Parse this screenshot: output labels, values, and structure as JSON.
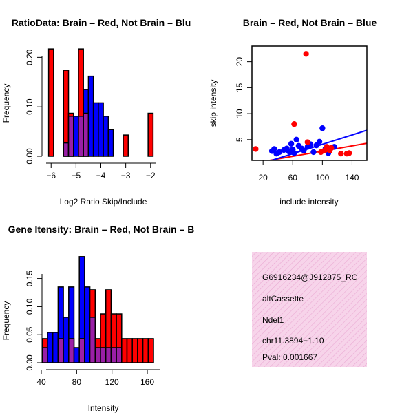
{
  "colors": {
    "red": "#ff0000",
    "blue": "#0000ff",
    "purple": "#9a1fa6",
    "axis": "#000000",
    "info_bg": "#f7d4ea",
    "pval": "#8b0000"
  },
  "chart_data": [
    {
      "id": "ratio",
      "type": "bar",
      "title": "RatioData: Brain – Red, Not Brain – Blu",
      "xlabel": "Log2 Ratio Skip/Include",
      "ylabel": "Frequency",
      "xlim": [
        -6.2,
        -1.8
      ],
      "ylim": [
        0,
        0.22
      ],
      "xticks": [
        -6,
        -5,
        -4,
        -3,
        -2
      ],
      "xtick_labels": [
        "−6",
        "−5",
        "−4",
        "−3",
        "−2"
      ],
      "yticks": [
        0.0,
        0.1,
        0.2
      ],
      "ytick_labels": [
        "0.00",
        "0.10",
        "0.20"
      ],
      "bin_width": 0.2,
      "series": [
        {
          "name": "Brain",
          "color": "red",
          "bins": [
            {
              "x": -6.0,
              "y": 0.217
            },
            {
              "x": -5.4,
              "y": 0.174
            },
            {
              "x": -5.2,
              "y": 0.087
            },
            {
              "x": -4.8,
              "y": 0.217
            },
            {
              "x": -4.6,
              "y": 0.087
            },
            {
              "x": -3.0,
              "y": 0.043
            },
            {
              "x": -2.0,
              "y": 0.087
            }
          ]
        },
        {
          "name": "Not Brain",
          "color": "blue",
          "bins": [
            {
              "x": -5.4,
              "y": 0.027
            },
            {
              "x": -5.2,
              "y": 0.081
            },
            {
              "x": -5.0,
              "y": 0.081
            },
            {
              "x": -4.8,
              "y": 0.081
            },
            {
              "x": -4.6,
              "y": 0.135
            },
            {
              "x": -4.4,
              "y": 0.162
            },
            {
              "x": -4.2,
              "y": 0.108
            },
            {
              "x": -4.0,
              "y": 0.108
            },
            {
              "x": -3.8,
              "y": 0.081
            },
            {
              "x": -3.6,
              "y": 0.054
            }
          ]
        }
      ]
    },
    {
      "id": "scatter",
      "type": "scatter",
      "title": "Brain – Red, Not Brain – Blue",
      "xlabel": "include intensity",
      "ylabel": "skip intensity",
      "xlim": [
        5,
        160
      ],
      "ylim": [
        1,
        23
      ],
      "xticks": [
        20,
        60,
        100,
        140
      ],
      "yticks": [
        5,
        10,
        15,
        20
      ],
      "series": [
        {
          "name": "Brain",
          "color": "red",
          "points": [
            [
              10,
              3.2
            ],
            [
              62,
              8.0
            ],
            [
              78,
              21.5
            ],
            [
              80,
              4.5
            ],
            [
              98,
              2.6
            ],
            [
              103,
              2.9
            ],
            [
              106,
              3.6
            ],
            [
              108,
              3.1
            ],
            [
              110,
              2.9
            ],
            [
              112,
              3.4
            ],
            [
              125,
              2.3
            ],
            [
              133,
              2.3
            ],
            [
              136,
              2.4
            ]
          ],
          "fit": [
            [
              5,
              0.4
            ],
            [
              160,
              4.3
            ]
          ]
        },
        {
          "name": "Not Brain",
          "color": "blue",
          "points": [
            [
              32,
              2.8
            ],
            [
              35,
              3.2
            ],
            [
              38,
              2.3
            ],
            [
              42,
              2.6
            ],
            [
              48,
              3.0
            ],
            [
              52,
              3.3
            ],
            [
              55,
              2.7
            ],
            [
              58,
              4.2
            ],
            [
              60,
              3.1
            ],
            [
              62,
              2.4
            ],
            [
              65,
              5.0
            ],
            [
              68,
              3.8
            ],
            [
              72,
              3.3
            ],
            [
              75,
              2.9
            ],
            [
              80,
              3.6
            ],
            [
              84,
              4.1
            ],
            [
              88,
              2.6
            ],
            [
              92,
              3.9
            ],
            [
              96,
              4.6
            ],
            [
              100,
              7.2
            ],
            [
              104,
              3.2
            ],
            [
              108,
              2.4
            ],
            [
              116,
              3.6
            ]
          ],
          "fit": [
            [
              5,
              -0.2
            ],
            [
              160,
              6.8
            ]
          ]
        }
      ]
    },
    {
      "id": "intensity",
      "type": "bar",
      "title": "Gene Itensity: Brain – Red, Not Brain – B",
      "xlabel": "Intensity",
      "ylabel": "Frequency",
      "xlim": [
        40,
        174
      ],
      "ylim": [
        0,
        0.19
      ],
      "xticks": [
        40,
        80,
        120,
        160
      ],
      "yticks": [
        0.0,
        0.05,
        0.1,
        0.15
      ],
      "ytick_labels": [
        "0.00",
        "0.05",
        "0.10",
        "0.15"
      ],
      "bin_width": 6,
      "series": [
        {
          "name": "Brain",
          "color": "red",
          "bins": [
            {
              "x": 44,
              "y": 0.043
            },
            {
              "x": 62,
              "y": 0.043
            },
            {
              "x": 74,
              "y": 0.043
            },
            {
              "x": 86,
              "y": 0.043
            },
            {
              "x": 98,
              "y": 0.13
            },
            {
              "x": 104,
              "y": 0.043
            },
            {
              "x": 110,
              "y": 0.087
            },
            {
              "x": 116,
              "y": 0.13
            },
            {
              "x": 122,
              "y": 0.087
            },
            {
              "x": 128,
              "y": 0.087
            },
            {
              "x": 134,
              "y": 0.043
            },
            {
              "x": 140,
              "y": 0.043
            },
            {
              "x": 146,
              "y": 0.043
            },
            {
              "x": 152,
              "y": 0.043
            },
            {
              "x": 158,
              "y": 0.043
            },
            {
              "x": 164,
              "y": 0.043
            }
          ]
        },
        {
          "name": "Not Brain",
          "color": "blue",
          "bins": [
            {
              "x": 44,
              "y": 0.027
            },
            {
              "x": 50,
              "y": 0.054
            },
            {
              "x": 56,
              "y": 0.054
            },
            {
              "x": 62,
              "y": 0.135
            },
            {
              "x": 68,
              "y": 0.081
            },
            {
              "x": 74,
              "y": 0.135
            },
            {
              "x": 80,
              "y": 0.027
            },
            {
              "x": 86,
              "y": 0.189
            },
            {
              "x": 92,
              "y": 0.135
            },
            {
              "x": 98,
              "y": 0.081
            },
            {
              "x": 104,
              "y": 0.027
            },
            {
              "x": 110,
              "y": 0.027
            },
            {
              "x": 116,
              "y": 0.027
            },
            {
              "x": 122,
              "y": 0.027
            },
            {
              "x": 128,
              "y": 0.027
            }
          ]
        }
      ]
    }
  ],
  "info": {
    "gene_id": "G6916234@J912875_RC",
    "event_type": "altCassette",
    "gene_symbol": "Ndel1",
    "location": "chr11.3894−1.10",
    "pval": "Pval: 0.001667"
  }
}
